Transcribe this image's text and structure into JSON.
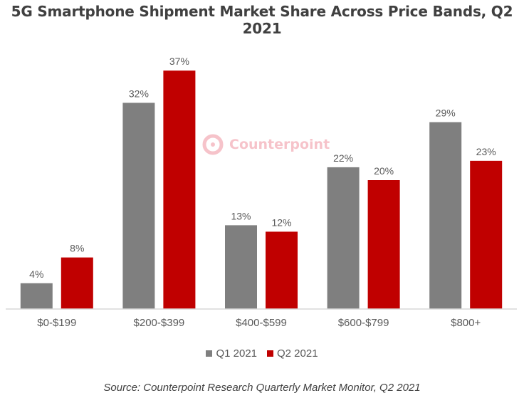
{
  "watermark": {
    "text": "Counterpoint"
  },
  "source_note": "Source: Counterpoint Research Quarterly Market Monitor, Q2 2021",
  "colors": {
    "q1": "#7f7f7f",
    "q2": "#c00000",
    "axis": "#d9d9d9",
    "label": "#595959"
  },
  "chart_data": {
    "type": "bar",
    "title": "5G Smartphone Shipment Market Share Across Price Bands, Q2 2021",
    "categories": [
      "$0-$199",
      "$200-$399",
      "$400-$599",
      "$600-$799",
      "$800+"
    ],
    "series": [
      {
        "name": "Q1 2021",
        "values": [
          4,
          32,
          13,
          22,
          29
        ],
        "labels": [
          "4%",
          "32%",
          "13%",
          "22%",
          "29%"
        ]
      },
      {
        "name": "Q2 2021",
        "values": [
          8,
          37,
          12,
          20,
          23
        ],
        "labels": [
          "8%",
          "37%",
          "12%",
          "20%",
          "23%"
        ]
      }
    ],
    "ylim": [
      0,
      40
    ],
    "xlabel": "",
    "ylabel": "",
    "grid": false,
    "legend": "bottom"
  }
}
